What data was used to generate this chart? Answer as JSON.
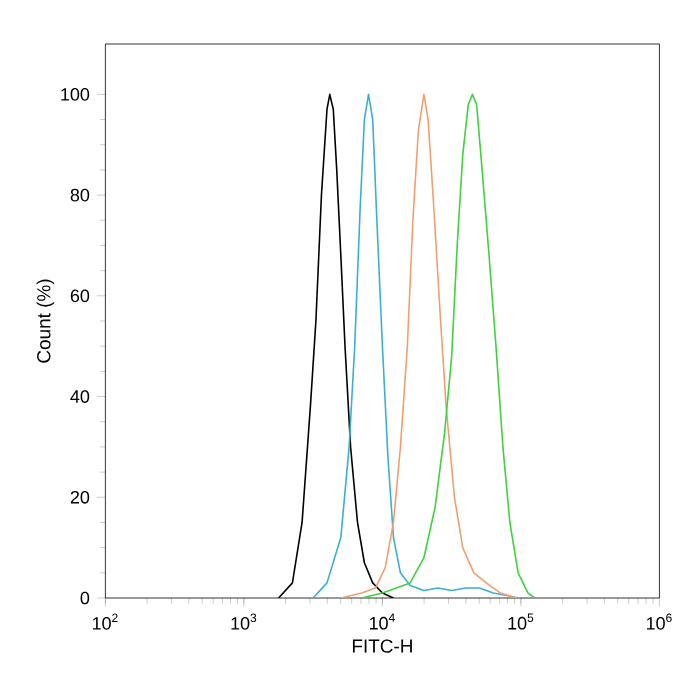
{
  "chart_data": {
    "type": "line",
    "xlabel": "FITC-H",
    "ylabel": "Count (%)",
    "log": "x",
    "xlim": [
      100,
      1000000
    ],
    "ylim": [
      0,
      110
    ],
    "xticks": [
      {
        "value": 100,
        "label": "10$^{2}$"
      },
      {
        "value": 1000,
        "label": "10$^{3}$"
      },
      {
        "value": 10000,
        "label": "10$^{4}$"
      },
      {
        "value": 100000,
        "label": "10$^{5}$"
      },
      {
        "value": 1000000,
        "label": "10$^{6}$"
      }
    ],
    "yticks": [
      0,
      20,
      40,
      60,
      80,
      100
    ],
    "series": [
      {
        "color": "#000000",
        "x": [
          1780,
          2240,
          2630,
          3020,
          3310,
          3630,
          3980,
          4170,
          4420,
          4680,
          5010,
          5370,
          5890,
          6610,
          7410,
          8510,
          10000,
          12000
        ],
        "values": [
          0,
          3,
          15,
          38,
          55,
          80,
          97,
          100,
          97,
          85,
          68,
          50,
          30,
          15,
          7,
          3,
          1,
          0
        ]
      },
      {
        "color": "#3ab0d0",
        "x": [
          3160,
          3980,
          5010,
          5750,
          6310,
          6920,
          7410,
          7940,
          8510,
          9120,
          10000,
          10960,
          12020,
          13490,
          15850,
          19950,
          25120,
          31620,
          39810,
          50120,
          63100,
          79430,
          95500
        ],
        "values": [
          0,
          3,
          12,
          30,
          50,
          78,
          95,
          100,
          95,
          75,
          50,
          28,
          12,
          5,
          2.5,
          1.5,
          2,
          1.5,
          2,
          2,
          1,
          0.5,
          0
        ]
      },
      {
        "color": "#f0a070",
        "x": [
          5010,
          7080,
          8910,
          10470,
          12020,
          13490,
          15140,
          16600,
          18200,
          19950,
          21380,
          23440,
          26300,
          28840,
          33110,
          38020,
          45710,
          56230,
          70790,
          93300
        ],
        "values": [
          0,
          1,
          2,
          6,
          15,
          30,
          50,
          75,
          93,
          100,
          95,
          78,
          55,
          38,
          20,
          10,
          5,
          3,
          1,
          0
        ]
      },
      {
        "color": "#40d040",
        "x": [
          7080,
          10000,
          12590,
          15850,
          19950,
          23990,
          28180,
          31620,
          34670,
          38020,
          41690,
          44670,
          47860,
          52480,
          58880,
          66070,
          74130,
          83180,
          95500,
          112200,
          125900
        ],
        "values": [
          0,
          1,
          2,
          3,
          8,
          18,
          33,
          48,
          70,
          88,
          98,
          100,
          98,
          85,
          68,
          50,
          30,
          15,
          5,
          1,
          0
        ]
      }
    ]
  }
}
